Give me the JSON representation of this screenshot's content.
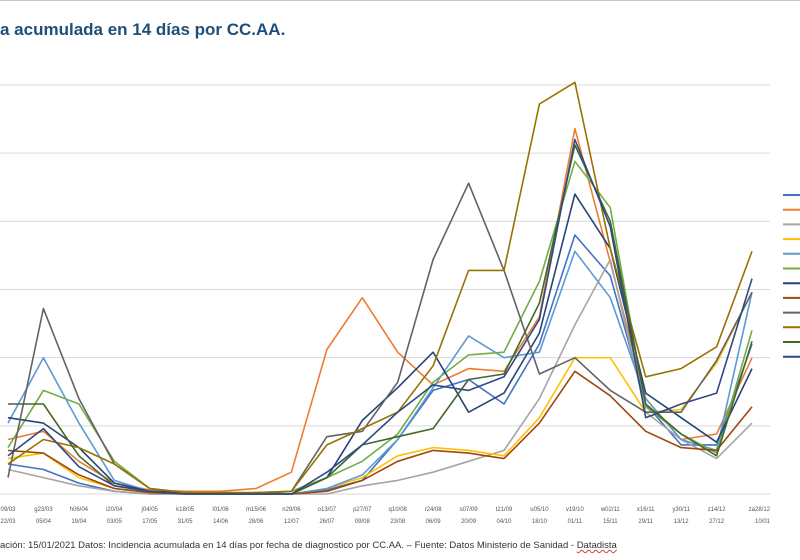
{
  "chart_data": {
    "type": "line",
    "title": "a acumulada en 14 días por CC.AA.",
    "xlabel": "",
    "ylabel": "",
    "ylim": [
      0,
      1500
    ],
    "grid": true,
    "legend": "right",
    "x_top": [
      "09/03",
      "g23/03",
      "h06/04",
      "i20/04",
      "j04/05",
      "k18/05",
      "l01/06",
      "m15/06",
      "n29/06",
      "o13/07",
      "p27/07",
      "q10/08",
      "r24/08",
      "s07/09",
      "t21/09",
      "u05/10",
      "v19/10",
      "w02/11",
      "x16/11",
      "y30/11",
      "z14/12",
      "za28/12"
    ],
    "x_bottom": [
      "22/03",
      "05/04",
      "19/04",
      "03/05",
      "17/05",
      "31/05",
      "14/06",
      "28/06",
      "12/07",
      "26/07",
      "09/08",
      "23/08",
      "06/09",
      "20/09",
      "04/10",
      "18/10",
      "01/11",
      "15/11",
      "29/11",
      "13/12",
      "27/12",
      "10/01"
    ],
    "series": [
      {
        "name": "",
        "color": "#4472c4",
        "values": [
          110,
          90,
          40,
          10,
          0,
          0,
          0,
          0,
          0,
          15,
          50,
          200,
          380,
          420,
          330,
          550,
          950,
          800,
          330,
          180,
          180,
          550
        ]
      },
      {
        "name": "",
        "color": "#ed7d31",
        "values": [
          200,
          230,
          120,
          40,
          15,
          10,
          10,
          20,
          80,
          530,
          720,
          520,
          400,
          460,
          450,
          650,
          1340,
          850,
          350,
          200,
          220,
          500
        ]
      },
      {
        "name": "",
        "color": "#a5a5a5",
        "values": [
          90,
          60,
          30,
          10,
          0,
          0,
          0,
          0,
          0,
          0,
          30,
          50,
          80,
          120,
          160,
          350,
          620,
          860,
          300,
          200,
          130,
          260
        ]
      },
      {
        "name": "",
        "color": "#ffc000",
        "values": [
          130,
          150,
          60,
          20,
          5,
          0,
          0,
          0,
          0,
          20,
          60,
          140,
          170,
          160,
          140,
          280,
          500,
          500,
          300,
          310,
          480,
          740
        ]
      },
      {
        "name": "",
        "color": "#5b9bd5",
        "values": [
          260,
          500,
          260,
          50,
          10,
          0,
          0,
          0,
          0,
          20,
          70,
          200,
          390,
          580,
          500,
          520,
          890,
          720,
          350,
          200,
          160,
          740
        ]
      },
      {
        "name": "",
        "color": "#70ad47",
        "values": [
          170,
          380,
          330,
          120,
          20,
          5,
          0,
          5,
          10,
          60,
          120,
          220,
          410,
          510,
          520,
          780,
          1220,
          1050,
          320,
          220,
          150,
          600
        ]
      },
      {
        "name": "",
        "color": "#264478",
        "values": [
          280,
          260,
          170,
          40,
          10,
          5,
          0,
          0,
          0,
          60,
          270,
          390,
          520,
          300,
          370,
          590,
          1100,
          900,
          370,
          280,
          190,
          460
        ]
      },
      {
        "name": "",
        "color": "#9e480e",
        "values": [
          160,
          150,
          70,
          20,
          5,
          0,
          0,
          0,
          0,
          10,
          50,
          120,
          160,
          150,
          130,
          260,
          450,
          360,
          230,
          170,
          160,
          320
        ]
      },
      {
        "name": "",
        "color": "#636363",
        "values": [
          60,
          680,
          350,
          110,
          20,
          5,
          0,
          0,
          10,
          210,
          230,
          410,
          860,
          1140,
          820,
          440,
          500,
          380,
          300,
          300,
          490,
          740
        ]
      },
      {
        "name": "",
        "color": "#997300",
        "values": [
          110,
          200,
          170,
          110,
          20,
          5,
          5,
          5,
          10,
          180,
          240,
          300,
          470,
          820,
          820,
          1430,
          1510,
          900,
          430,
          460,
          540,
          890
        ]
      },
      {
        "name": "",
        "color": "#43682b",
        "values": [
          330,
          330,
          140,
          30,
          10,
          0,
          0,
          0,
          0,
          60,
          180,
          210,
          240,
          420,
          440,
          700,
          1280,
          1000,
          330,
          220,
          140,
          560
        ]
      },
      {
        "name": "",
        "color": "#2e4a86",
        "values": [
          140,
          240,
          100,
          30,
          10,
          0,
          0,
          0,
          0,
          80,
          180,
          300,
          400,
          380,
          430,
          640,
          1300,
          980,
          280,
          330,
          370,
          790
        ]
      }
    ]
  },
  "footer": {
    "text": "ación: 15/01/2021 Datos: Incidencia acumulada en 14 días por fecha de diagnostico por CC.AA. – Fuente: Datos Ministerio de Sanidad - ",
    "brand": "Datadista"
  }
}
